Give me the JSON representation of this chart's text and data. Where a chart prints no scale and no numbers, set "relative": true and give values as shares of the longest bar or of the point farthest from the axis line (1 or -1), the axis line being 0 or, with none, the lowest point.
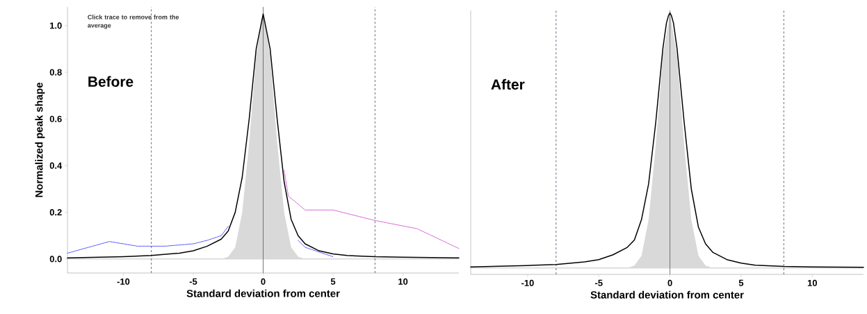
{
  "chart_data": [
    {
      "type": "line",
      "title": "Before",
      "xlabel": "Standard deviation from center",
      "ylabel": "Normalized peak shape",
      "annotations": [
        "Click trace to remove from the average"
      ],
      "xlim": [
        -14,
        14
      ],
      "ylim": [
        -0.06,
        1.08
      ],
      "xticks": [
        -10,
        -5,
        0,
        5,
        10
      ],
      "yticks": [
        {
          "value": 0,
          "label": "0.0"
        },
        {
          "value": 0.2,
          "label": "0.2"
        },
        {
          "value": 0.4,
          "label": "0.4"
        },
        {
          "value": 0.6,
          "label": "0.6"
        },
        {
          "value": 0.8,
          "label": "0.8"
        },
        {
          "value": 1.0,
          "label": "1.0"
        }
      ],
      "ref_lines": [
        {
          "axis": "x",
          "value": -8,
          "color": "#34495e",
          "line_style": "dashed"
        },
        {
          "axis": "x",
          "value": 8,
          "color": "#34495e",
          "line_style": "dashed"
        },
        {
          "axis": "x",
          "value": 0,
          "color": "#555555",
          "line_style": "solid"
        }
      ],
      "series": [
        {
          "type": "area",
          "color": "#d9d9d9",
          "x": [
            -3,
            -2.5,
            -2,
            -1.5,
            -1,
            -0.5,
            0,
            0.5,
            1,
            1.5,
            2,
            2.5,
            3
          ],
          "values": [
            0,
            0.01,
            0.05,
            0.2,
            0.5,
            0.87,
            1.05,
            0.87,
            0.5,
            0.2,
            0.05,
            0.01,
            0
          ]
        },
        {
          "color": "#000000",
          "x": [
            -14,
            -10,
            -8,
            -6,
            -5,
            -4,
            -3,
            -2.5,
            -2,
            -1.5,
            -1,
            -0.5,
            0,
            0.5,
            1,
            1.5,
            2,
            2.5,
            3,
            4,
            5,
            6,
            8,
            10,
            14
          ],
          "values": [
            0.005,
            0.01,
            0.015,
            0.025,
            0.035,
            0.055,
            0.085,
            0.12,
            0.2,
            0.35,
            0.6,
            0.9,
            1.05,
            0.9,
            0.6,
            0.33,
            0.17,
            0.1,
            0.065,
            0.035,
            0.022,
            0.015,
            0.01,
            0.008,
            0.005
          ]
        },
        {
          "color": "#3333ff",
          "line_style": "dotted",
          "x": [
            -14,
            -11,
            -9,
            -7,
            -5,
            -4,
            -3,
            -2.5,
            0,
            2.5,
            3,
            5
          ],
          "values": [
            0.025,
            0.075,
            0.055,
            0.055,
            0.065,
            0.08,
            0.1,
            0.14,
            null,
            0.08,
            0.05,
            0.01
          ]
        },
        {
          "color": "#cc44cc",
          "line_style": "dotted",
          "x": [
            1.5,
            1.8,
            3,
            5,
            8,
            11,
            14
          ],
          "values": [
            0.38,
            0.27,
            0.21,
            0.21,
            0.165,
            0.13,
            0.045
          ]
        }
      ]
    },
    {
      "type": "line",
      "title": "After",
      "xlabel": "Standard deviation from center",
      "relative": true,
      "xlim": [
        -14,
        13.6
      ],
      "xticks": [
        -10,
        -5,
        0,
        5,
        10
      ],
      "ref_lines": [
        {
          "axis": "x",
          "value": -8,
          "color": "#34495e",
          "line_style": "dashed"
        },
        {
          "axis": "x",
          "value": 8,
          "color": "#34495e",
          "line_style": "dashed"
        },
        {
          "axis": "x",
          "value": 0,
          "color": "#555555",
          "line_style": "solid"
        }
      ],
      "series": [
        {
          "type": "area",
          "color": "#d9d9d9",
          "x": [
            -3,
            -2.5,
            -2,
            -1.5,
            -1,
            -0.5,
            0,
            0.5,
            1,
            1.5,
            2,
            2.5,
            3
          ],
          "values": [
            0,
            0.01,
            0.048,
            0.19,
            0.48,
            0.83,
            1,
            0.83,
            0.48,
            0.19,
            0.048,
            0.01,
            0
          ]
        },
        {
          "color": "#000000",
          "x": [
            -14,
            -10,
            -8,
            -6,
            -5,
            -4,
            -3,
            -2.5,
            -2,
            -1.5,
            -1,
            -0.5,
            -0.25,
            -0.1,
            0,
            0.1,
            0.25,
            0.5,
            1,
            1.5,
            2,
            2.5,
            3,
            4,
            5,
            6,
            8,
            10,
            13.6
          ],
          "values": [
            0.004,
            0.01,
            0.014,
            0.024,
            0.033,
            0.052,
            0.081,
            0.11,
            0.19,
            0.33,
            0.57,
            0.86,
            0.96,
            0.99,
            1,
            0.99,
            0.96,
            0.86,
            0.57,
            0.31,
            0.16,
            0.095,
            0.062,
            0.033,
            0.019,
            0.011,
            0.006,
            0.004,
            0.003
          ]
        }
      ]
    }
  ]
}
